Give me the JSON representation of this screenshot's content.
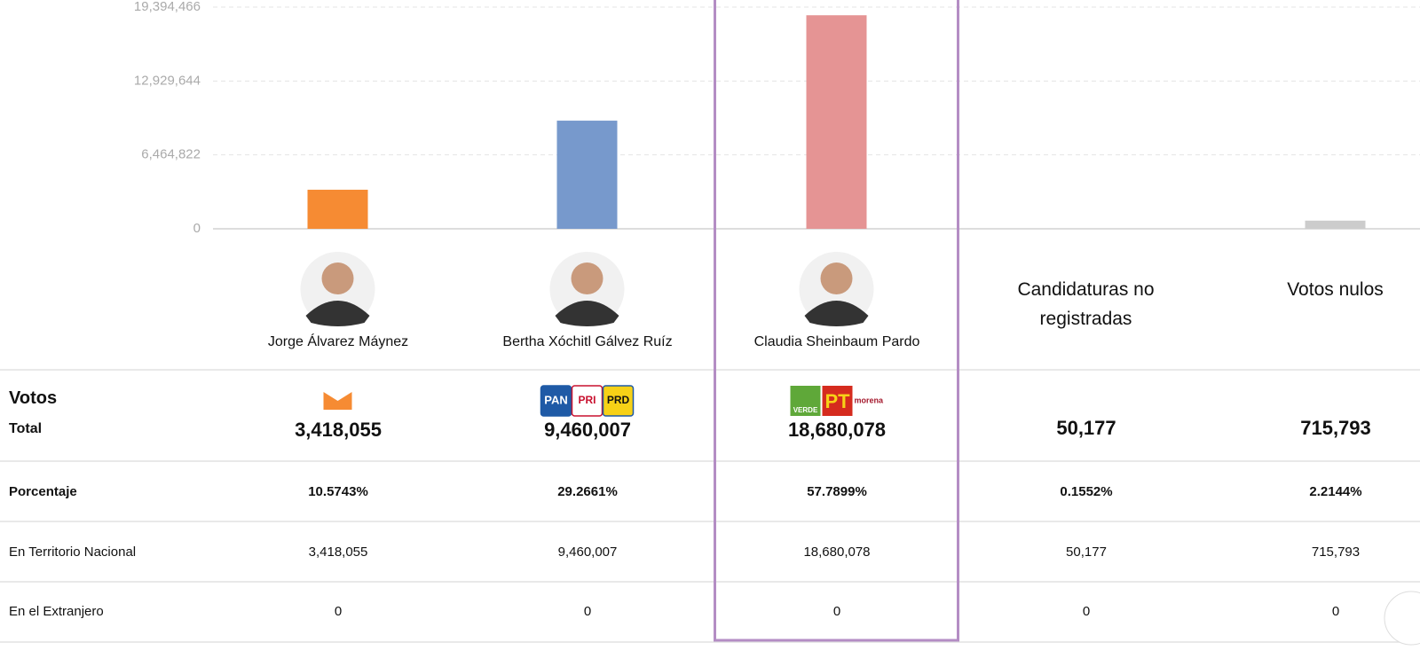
{
  "chart_data": {
    "type": "bar",
    "categories": [
      "Jorge Álvarez Máynez",
      "Bertha Xóchitl Gálvez Ruíz",
      "Claudia Sheinbaum Pardo",
      "Candidaturas no registradas",
      "Votos nulos"
    ],
    "values": [
      3418055,
      9460007,
      18680078,
      50177,
      715793
    ],
    "value_labels": [
      "3,418,055",
      "9,460,007",
      "18,680,078",
      "50,177",
      "715,793"
    ],
    "colors": [
      "#f68b33",
      "#7799cc",
      "#e59494",
      "#dddddd",
      "#cccccc"
    ],
    "ylim": [
      0,
      19394466
    ],
    "yticks": [
      0,
      {
        "value": 6464822,
        "label": "6,464,822"
      },
      {
        "value": 12929644,
        "label": "12,929,644"
      },
      {
        "value": 19394466,
        "label": "19,394,466"
      }
    ],
    "grid": true
  },
  "logos": [
    null,
    [
      "PAN",
      "PRI",
      "PRD"
    ],
    [
      "VERDE",
      "PT",
      "morena"
    ],
    null,
    null
  ],
  "table": {
    "header": [
      "Votos",
      "Total"
    ],
    "rows": [
      {
        "label": "Porcentaje",
        "cells": [
          "10.5743%",
          "29.2661%",
          "57.7899%",
          "0.1552%",
          "2.2144%"
        ]
      },
      {
        "label": "En Territorio Nacional",
        "cells": [
          "3,418,055",
          "9,460,007",
          "18,680,078",
          "50,177",
          "715,793"
        ]
      },
      {
        "label": "En el Extranjero",
        "cells": [
          "0",
          "0",
          "0",
          "0",
          "0"
        ]
      }
    ]
  }
}
